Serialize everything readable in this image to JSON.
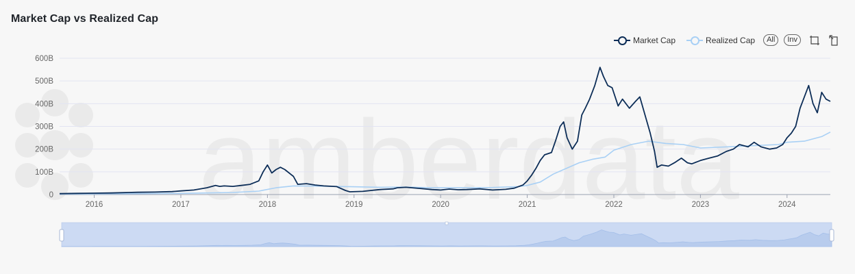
{
  "header": {
    "title": "Market Cap vs Realized Cap"
  },
  "controls": {
    "all_label": "All",
    "inv_label": "Inv"
  },
  "icons": {
    "zoom": "zoom-area-icon",
    "reset": "zoom-reset-icon"
  },
  "watermark": {
    "text": "amberdata"
  },
  "colors": {
    "market_cap": "#0c2d57",
    "realized_cap": "#a8d0f5",
    "grid": "#e2e4f2",
    "slider": "#dbe5f7"
  },
  "chart_data": {
    "type": "line",
    "title": "Market Cap vs Realized Cap",
    "xlabel": "",
    "ylabel": "",
    "x_range": [
      2015.6,
      2024.5
    ],
    "ylim": [
      0,
      600
    ],
    "y_unit": "B",
    "y_ticks": [
      "0",
      "100B",
      "200B",
      "300B",
      "400B",
      "500B",
      "600B"
    ],
    "x_ticks": [
      "2016",
      "2017",
      "2018",
      "2019",
      "2020",
      "2021",
      "2022",
      "2023",
      "2024"
    ],
    "grid": true,
    "legend_position": "top-right",
    "series": [
      {
        "name": "Market Cap",
        "x": [
          2015.6,
          2015.8,
          2016.0,
          2016.2,
          2016.4,
          2016.5,
          2016.7,
          2016.9,
          2017.0,
          2017.15,
          2017.3,
          2017.4,
          2017.45,
          2017.5,
          2017.6,
          2017.7,
          2017.8,
          2017.9,
          2017.95,
          2018.0,
          2018.05,
          2018.1,
          2018.15,
          2018.2,
          2018.3,
          2018.35,
          2018.45,
          2018.55,
          2018.65,
          2018.8,
          2018.9,
          2018.95,
          2019.1,
          2019.2,
          2019.3,
          2019.45,
          2019.5,
          2019.6,
          2019.75,
          2019.9,
          2020.0,
          2020.1,
          2020.2,
          2020.3,
          2020.45,
          2020.6,
          2020.75,
          2020.85,
          2020.95,
          2021.0,
          2021.05,
          2021.1,
          2021.15,
          2021.2,
          2021.28,
          2021.33,
          2021.38,
          2021.42,
          2021.46,
          2021.52,
          2021.58,
          2021.63,
          2021.67,
          2021.72,
          2021.78,
          2021.84,
          2021.88,
          2021.93,
          2021.98,
          2022.05,
          2022.1,
          2022.18,
          2022.25,
          2022.3,
          2022.36,
          2022.42,
          2022.47,
          2022.5,
          2022.55,
          2022.63,
          2022.7,
          2022.78,
          2022.85,
          2022.9,
          2023.0,
          2023.1,
          2023.2,
          2023.3,
          2023.38,
          2023.45,
          2023.55,
          2023.62,
          2023.7,
          2023.8,
          2023.88,
          2023.95,
          2024.0,
          2024.05,
          2024.1,
          2024.15,
          2024.2,
          2024.25,
          2024.3,
          2024.35,
          2024.4,
          2024.45,
          2024.5
        ],
        "values": [
          4,
          5,
          6,
          7,
          9,
          10,
          11,
          13,
          16,
          20,
          30,
          40,
          36,
          38,
          36,
          40,
          45,
          60,
          100,
          130,
          95,
          110,
          120,
          110,
          80,
          45,
          48,
          42,
          38,
          35,
          18,
          12,
          14,
          18,
          22,
          25,
          30,
          32,
          27,
          22,
          20,
          24,
          21,
          22,
          25,
          20,
          23,
          28,
          42,
          60,
          85,
          115,
          150,
          175,
          185,
          240,
          300,
          320,
          250,
          200,
          235,
          350,
          380,
          420,
          480,
          560,
          520,
          480,
          470,
          390,
          420,
          380,
          410,
          430,
          350,
          270,
          190,
          120,
          130,
          125,
          140,
          160,
          140,
          135,
          150,
          160,
          170,
          190,
          200,
          220,
          210,
          230,
          210,
          200,
          205,
          220,
          250,
          270,
          300,
          380,
          430,
          480,
          400,
          360,
          450,
          420,
          410
        ]
      },
      {
        "name": "Realized Cap",
        "x": [
          2015.6,
          2016.0,
          2016.5,
          2017.0,
          2017.3,
          2017.6,
          2017.9,
          2018.1,
          2018.3,
          2018.6,
          2018.9,
          2019.3,
          2019.6,
          2019.9,
          2020.3,
          2020.6,
          2020.9,
          2021.0,
          2021.15,
          2021.3,
          2021.45,
          2021.6,
          2021.75,
          2021.9,
          2022.0,
          2022.2,
          2022.4,
          2022.6,
          2022.8,
          2023.0,
          2023.3,
          2023.6,
          2023.9,
          2024.0,
          2024.2,
          2024.4,
          2024.5
        ],
        "values": [
          2,
          3,
          4,
          5,
          7,
          9,
          15,
          30,
          38,
          37,
          35,
          32,
          33,
          30,
          30,
          31,
          35,
          40,
          55,
          90,
          115,
          140,
          155,
          165,
          195,
          220,
          235,
          225,
          220,
          205,
          210,
          215,
          220,
          230,
          235,
          255,
          275
        ]
      }
    ]
  }
}
